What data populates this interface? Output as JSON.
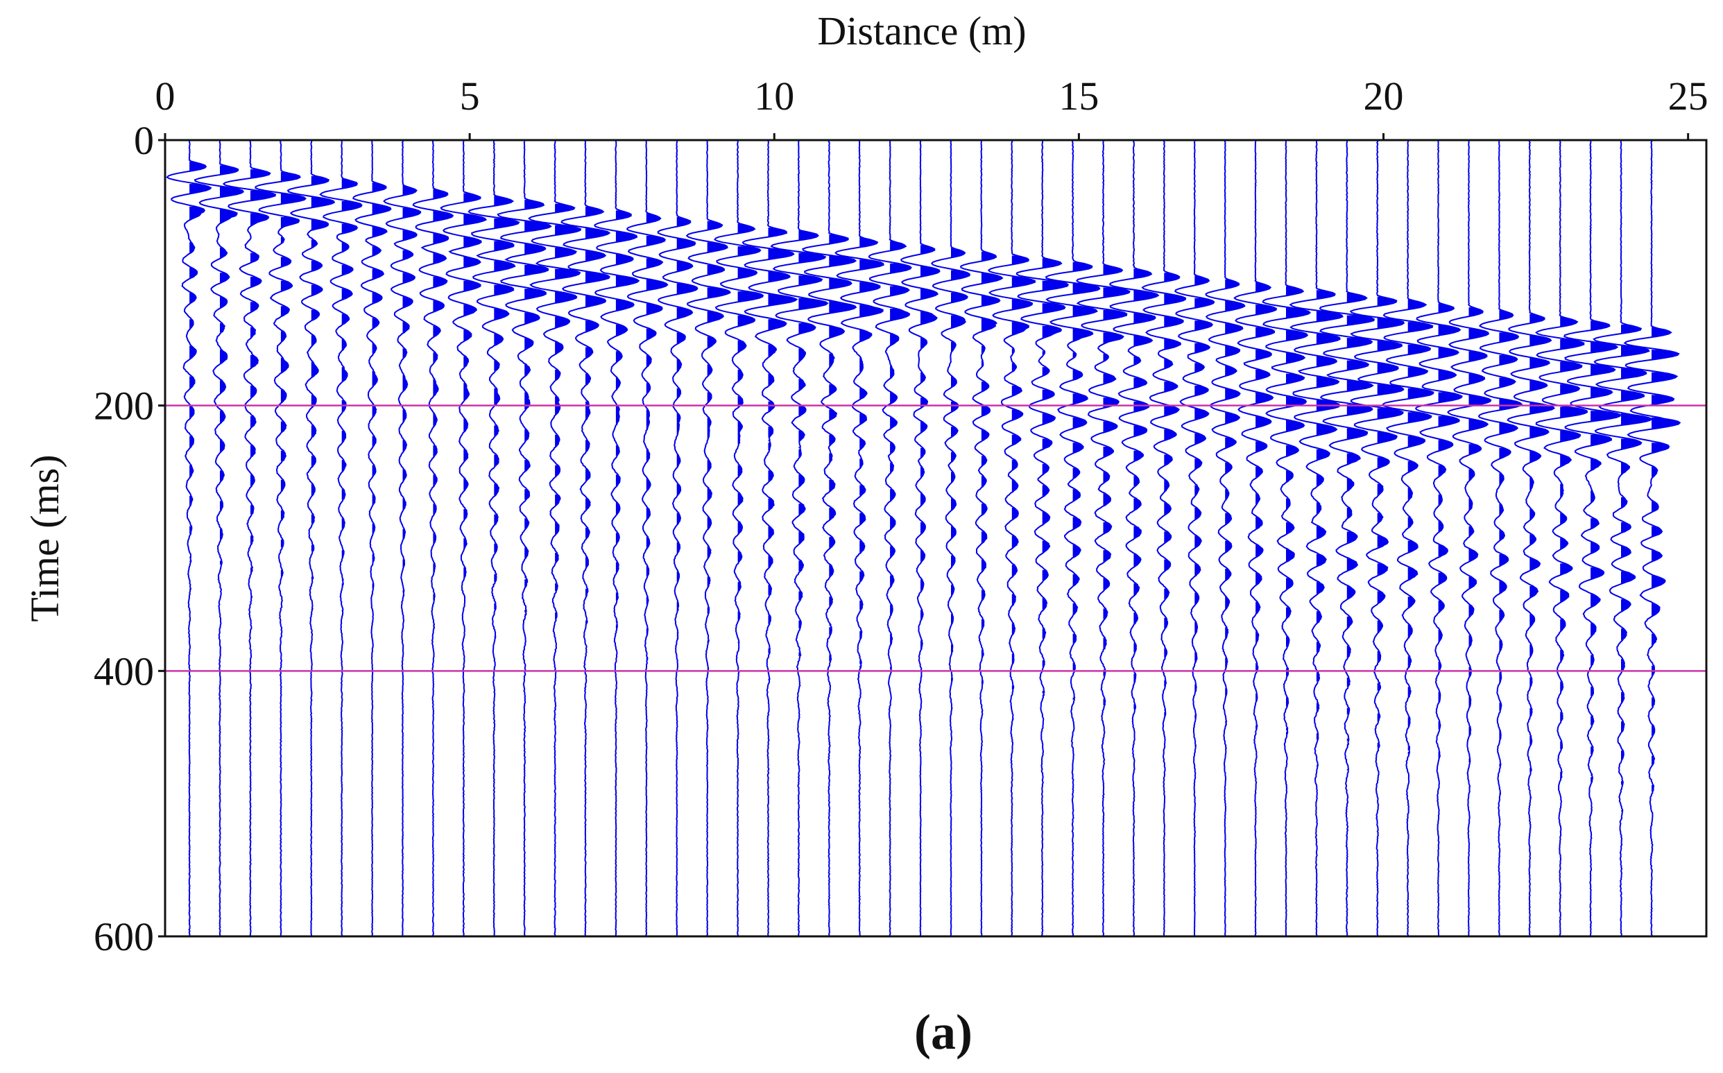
{
  "chart_data": {
    "type": "seismic-wiggle",
    "title": "",
    "panel_label": "(a)",
    "xlabel": "Distance (m)",
    "ylabel": "Time (ms)",
    "xlim": [
      0,
      25.3
    ],
    "ylim": [
      0,
      600
    ],
    "x_axis_position": "top",
    "y_axis_inverted": true,
    "xticks": [
      0,
      5,
      10,
      15,
      20,
      25
    ],
    "xtick_labels": [
      "0",
      "5",
      "10",
      "15",
      "20",
      "25"
    ],
    "yticks": [
      0,
      200,
      400,
      600
    ],
    "ytick_labels": [
      "0",
      "200",
      "400",
      "600"
    ],
    "reference_lines_ms": [
      200,
      400
    ],
    "reference_line_color": "#cc33aa",
    "trace_color": "#0000ee",
    "trace_count": 49,
    "trace_spacing_m": 0.5,
    "first_trace_offset_m": 0.4,
    "first_arrival_ms_at_first_trace": 15,
    "first_arrival_ms_at_last_trace": 140,
    "wavelet_period_ms": 17,
    "grid": false,
    "legend": "none"
  }
}
